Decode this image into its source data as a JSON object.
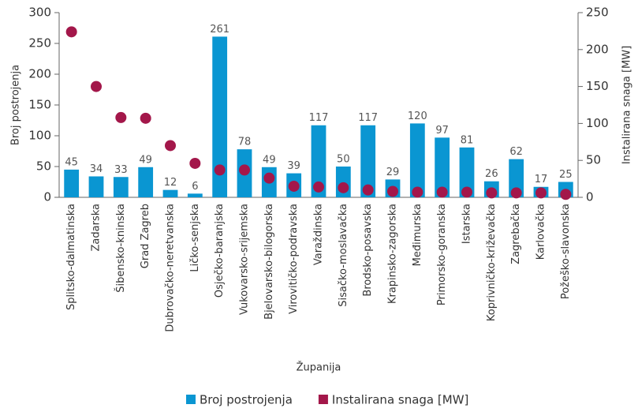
{
  "chart_data": {
    "type": "bar",
    "xlabel": "Županija",
    "ylabel": "Broj postrojenja",
    "y2label": "Instalirana snaga [MW]",
    "categories": [
      "Splitsko-dalmatinska",
      "Zadarska",
      "Šibensko-kninska",
      "Grad Zagreb",
      "Dubrovačko-neretvanska",
      "Ličko-senjska",
      "Osječko-baranjska",
      "Vukovarsko-srijemska",
      "Bjelovarsko-bilogorska",
      "Virovitičko-podravska",
      "Varaždinska",
      "Sisačko-moslavačka",
      "Brodsko-posavska",
      "Krapinsko-zagorska",
      "Međimurska",
      "Primorsko-goranska",
      "Istarska",
      "Koprivničko-križevačka",
      "Zagrebačka",
      "Karlovačka",
      "Požeško-slavonska"
    ],
    "series": [
      {
        "name": "Broj postrojenja",
        "type": "bar",
        "color": "#0a96d2",
        "values": [
          45,
          34,
          33,
          49,
          12,
          6,
          261,
          78,
          49,
          39,
          117,
          50,
          117,
          29,
          120,
          97,
          81,
          26,
          62,
          17,
          25
        ]
      },
      {
        "name": "Instalirana snaga [MW]",
        "type": "scatter",
        "axis": "y2",
        "color": "#a3174a",
        "values": [
          224,
          150,
          108,
          107,
          70,
          46,
          37,
          37,
          26,
          15,
          14,
          13,
          10,
          8,
          7,
          7,
          7,
          6,
          6,
          6,
          4
        ]
      }
    ],
    "ylim": [
      0,
      300
    ],
    "yticks": [
      0,
      50,
      100,
      150,
      200,
      250,
      300
    ],
    "y2lim": [
      0,
      250
    ],
    "y2ticks": [
      0,
      50,
      100,
      150,
      200,
      250
    ],
    "legend": "bottom"
  }
}
